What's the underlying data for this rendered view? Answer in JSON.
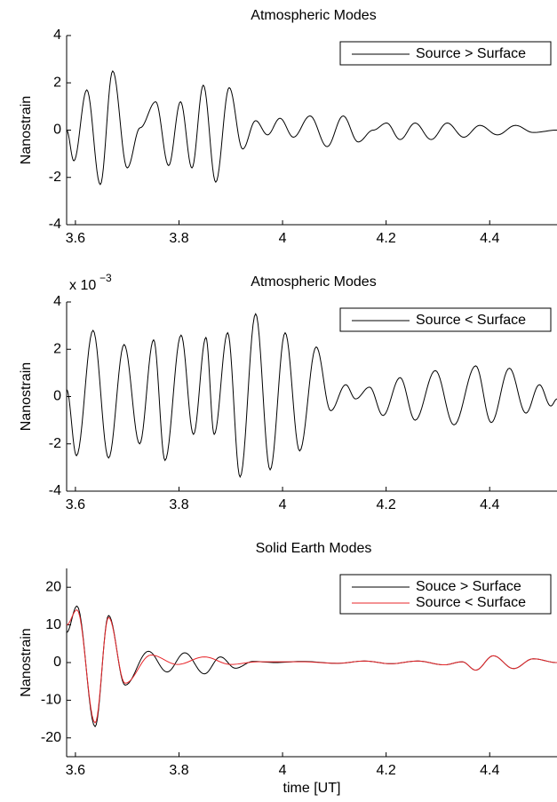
{
  "chart_data": [
    {
      "type": "line",
      "title": "Atmospheric Modes",
      "ylabel": "Nanostrain",
      "xlim": [
        3.583,
        4.53
      ],
      "ylim": [
        -4,
        4
      ],
      "xticks": [
        3.6,
        3.8,
        4,
        4.2,
        4.4
      ],
      "yticks": [
        -4,
        -2,
        0,
        2,
        4
      ],
      "legend": "upper right",
      "series": [
        {
          "name": "Source > Surface",
          "color": "#000000",
          "x": [
            3.583,
            3.597,
            3.622,
            3.648,
            3.672,
            3.7,
            3.725,
            3.755,
            3.78,
            3.803,
            3.825,
            3.847,
            3.871,
            3.897,
            3.923,
            3.948,
            3.971,
            3.995,
            4.021,
            4.053,
            4.086,
            4.117,
            4.146,
            4.175,
            4.201,
            4.227,
            4.256,
            4.287,
            4.318,
            4.35,
            4.381,
            4.415,
            4.45,
            4.484,
            4.53
          ],
          "values": [
            0,
            -1.3,
            1.7,
            -2.3,
            2.5,
            -1.6,
            0.1,
            1.2,
            -1.5,
            1.2,
            -1.6,
            1.9,
            -2.2,
            1.8,
            -0.8,
            0.4,
            -0.2,
            0.5,
            -0.3,
            0.6,
            -0.7,
            0.6,
            -0.5,
            0,
            0.3,
            -0.4,
            0.3,
            -0.4,
            0.3,
            -0.3,
            0.2,
            -0.2,
            0.2,
            -0.1,
            0
          ]
        }
      ]
    },
    {
      "type": "line",
      "title": "Atmospheric Modes",
      "ylabel": "Nanostrain",
      "y_multiplier": {
        "base": "x 10",
        "exponent": "−3"
      },
      "xlim": [
        3.583,
        4.53
      ],
      "ylim": [
        -4,
        4
      ],
      "xticks": [
        3.6,
        3.8,
        4,
        4.2,
        4.4
      ],
      "yticks": [
        -4,
        -2,
        0,
        2,
        4
      ],
      "legend": "upper right",
      "series": [
        {
          "name": "Source < Surface",
          "color": "#000000",
          "x": [
            3.583,
            3.602,
            3.634,
            3.664,
            3.694,
            3.724,
            3.751,
            3.773,
            3.804,
            3.828,
            3.852,
            3.868,
            3.894,
            3.918,
            3.948,
            3.976,
            4.005,
            4.033,
            4.065,
            4.093,
            4.122,
            4.141,
            4.168,
            4.194,
            4.227,
            4.256,
            4.295,
            4.331,
            4.373,
            4.403,
            4.438,
            4.47,
            4.496,
            4.518,
            4.53
          ],
          "values": [
            0.3,
            -2.5,
            2.8,
            -2.6,
            2.2,
            -2.0,
            2.4,
            -2.7,
            2.6,
            -1.6,
            2.5,
            -1.6,
            2.7,
            -3.4,
            3.5,
            -3.1,
            2.7,
            -2.3,
            2.1,
            -0.6,
            0.5,
            -0.1,
            0.4,
            -0.8,
            0.8,
            -1.0,
            1.1,
            -1.2,
            1.3,
            -1.1,
            1.2,
            -0.7,
            0.5,
            -0.4,
            -0.1
          ]
        }
      ]
    },
    {
      "type": "line",
      "title": "Solid Earth Modes",
      "ylabel": "Nanostrain",
      "xlabel": "time [UT]",
      "xlim": [
        3.583,
        4.53
      ],
      "ylim": [
        -25,
        25
      ],
      "xticks": [
        3.6,
        3.8,
        4,
        4.2,
        4.4
      ],
      "yticks": [
        -20,
        -10,
        0,
        10,
        20
      ],
      "legend": "upper right",
      "series": [
        {
          "name": "Souce > Surface",
          "color": "#000000",
          "x": [
            3.583,
            3.603,
            3.638,
            3.664,
            3.696,
            3.741,
            3.777,
            3.811,
            3.849,
            3.88,
            3.909,
            3.943,
            3.986,
            4.038,
            4.106,
            4.158,
            4.209,
            4.261,
            4.312,
            4.347,
            4.373,
            4.407,
            4.446,
            4.484,
            4.53
          ],
          "values": [
            8,
            15,
            -17,
            12.5,
            -6,
            3,
            -2.5,
            2.6,
            -3,
            1.5,
            -1.5,
            0.3,
            0,
            0.3,
            -0.2,
            0.4,
            -0.3,
            0.4,
            -0.6,
            0.2,
            -2,
            1.8,
            -1.6,
            1,
            0
          ]
        },
        {
          "name": "Source < Surface",
          "color": "#e8262a",
          "x": [
            3.583,
            3.603,
            3.638,
            3.664,
            3.696,
            3.746,
            3.797,
            3.849,
            3.9,
            3.952,
            4.038,
            4.106,
            4.158,
            4.209,
            4.261,
            4.312,
            4.347,
            4.373,
            4.407,
            4.446,
            4.484,
            4.53
          ],
          "values": [
            10,
            14,
            -16,
            12,
            -5.5,
            2,
            -0.5,
            1.5,
            -0.5,
            0.2,
            0.2,
            -0.2,
            0.4,
            -0.3,
            0.4,
            -0.6,
            0.2,
            -2,
            1.8,
            -1.6,
            1,
            0
          ]
        }
      ]
    }
  ]
}
